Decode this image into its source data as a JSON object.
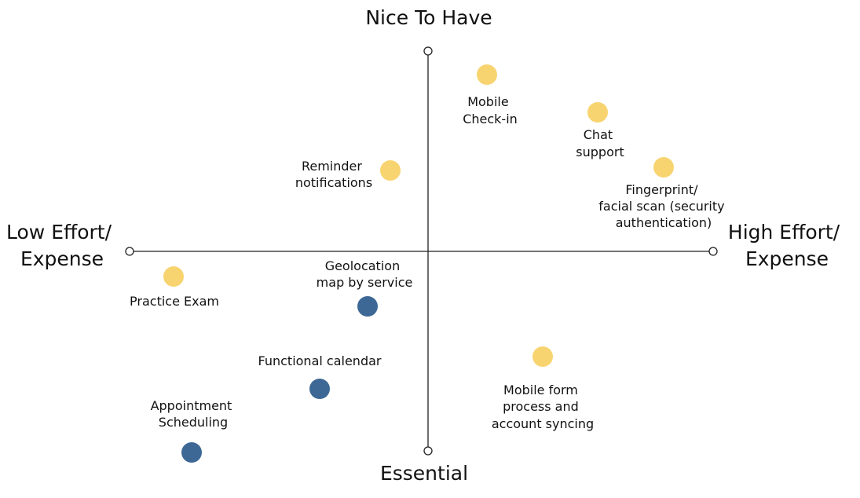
{
  "axes": {
    "top": "Nice To Have",
    "bottom": "Essential",
    "left": [
      "Low Effort/",
      "Expense"
    ],
    "right": [
      "High Effort/",
      "Expense"
    ]
  },
  "items": [
    {
      "label": [
        "Mobile",
        "Check-in"
      ]
    },
    {
      "label": [
        "Chat",
        "support"
      ]
    },
    {
      "label": [
        "Reminder",
        "notifications"
      ]
    },
    {
      "label": [
        "Fingerprint/",
        "facial scan (security",
        "authentication)"
      ]
    },
    {
      "label": [
        "Practice Exam"
      ]
    },
    {
      "label": [
        "Geolocation",
        "map by service"
      ]
    },
    {
      "label": [
        "Functional calendar"
      ]
    },
    {
      "label": [
        "Appointment",
        "Scheduling"
      ]
    },
    {
      "label": [
        "Mobile form",
        "process and",
        "account syncing"
      ]
    }
  ]
}
